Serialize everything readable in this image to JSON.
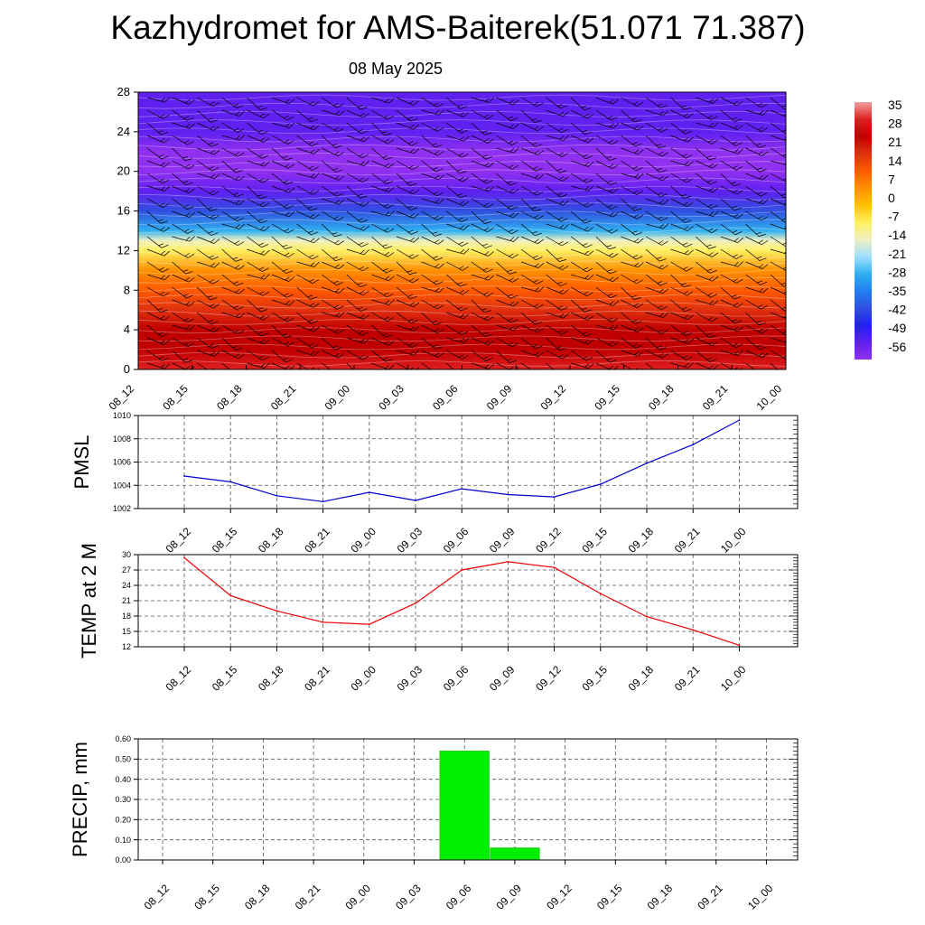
{
  "title": "Kazhydromet for AMS-Baiterek(51.071 71.387)",
  "date": "08 May 2025",
  "time_labels": [
    "08_12",
    "08_15",
    "08_18",
    "08_21",
    "09_00",
    "09_03",
    "09_06",
    "09_09",
    "09_12",
    "09_15",
    "09_18",
    "09_21",
    "10_00"
  ],
  "colorbar": {
    "labels": [
      "35",
      "28",
      "21",
      "14",
      "7",
      "0",
      "-7",
      "-14",
      "-21",
      "-28",
      "-35",
      "-42",
      "-49",
      "-56"
    ],
    "colors": [
      "#f0a0a0",
      "#e02020",
      "#c00000",
      "#e03010",
      "#ff5a00",
      "#ff9000",
      "#ffc000",
      "#fff060",
      "#f0f0c0",
      "#a0e0ff",
      "#30b0f0",
      "#2080f0",
      "#3050e0",
      "#2020f0",
      "#6020f0",
      "#9030f0"
    ]
  },
  "chart_data": [
    {
      "type": "heatmap",
      "title": "",
      "x": [
        "08_12",
        "08_15",
        "08_18",
        "08_21",
        "09_00",
        "09_03",
        "09_06",
        "09_09",
        "09_12",
        "09_15",
        "09_18",
        "09_21",
        "10_00"
      ],
      "y_ticks": [
        0,
        4,
        8,
        12,
        16,
        20,
        24,
        28
      ],
      "ylim": [
        0,
        28
      ],
      "color_range": [
        -56,
        35
      ],
      "profile": [
        {
          "y": 0,
          "value": 28
        },
        {
          "y": 2,
          "value": 25
        },
        {
          "y": 4,
          "value": 21
        },
        {
          "y": 6,
          "value": 16
        },
        {
          "y": 8,
          "value": 10
        },
        {
          "y": 10,
          "value": 3
        },
        {
          "y": 12,
          "value": -8
        },
        {
          "y": 13,
          "value": -16
        },
        {
          "y": 14,
          "value": -24
        },
        {
          "y": 16,
          "value": -36
        },
        {
          "y": 18,
          "value": -50
        },
        {
          "y": 20,
          "value": -56
        },
        {
          "y": 22,
          "value": -55
        },
        {
          "y": 24,
          "value": -52
        },
        {
          "y": 26,
          "value": -50
        },
        {
          "y": 28,
          "value": -48
        }
      ],
      "overlay": "wind barbs"
    },
    {
      "type": "line",
      "ylabel": "PMSL",
      "x": [
        "08_12",
        "08_15",
        "08_18",
        "08_21",
        "09_00",
        "09_03",
        "09_06",
        "09_09",
        "09_12",
        "09_15",
        "09_18",
        "09_21",
        "10_00"
      ],
      "y_ticks": [
        "1002",
        "1004",
        "1006",
        "1008",
        "1010"
      ],
      "ylim": [
        1002,
        1010
      ],
      "values": [
        1004.8,
        1004.3,
        1003.1,
        1002.6,
        1003.4,
        1002.7,
        1003.7,
        1003.2,
        1003.0,
        1004.1,
        1005.9,
        1007.5,
        1009.6
      ],
      "color": "#0000cc",
      "grid": true
    },
    {
      "type": "line",
      "ylabel": "TEMP at 2 M",
      "x": [
        "08_12",
        "08_15",
        "08_18",
        "08_21",
        "09_00",
        "09_03",
        "09_06",
        "09_09",
        "09_12",
        "09_15",
        "09_18",
        "09_21",
        "10_00"
      ],
      "y_ticks": [
        "12",
        "15",
        "18",
        "21",
        "24",
        "27",
        "30"
      ],
      "ylim": [
        12,
        30
      ],
      "values": [
        29.4,
        22.0,
        19.0,
        16.8,
        16.4,
        20.5,
        27.0,
        28.6,
        27.5,
        22.4,
        17.9,
        15.3,
        12.3
      ],
      "color": "#ee0000",
      "grid": true
    },
    {
      "type": "bar",
      "ylabel": "PRECIP, mm",
      "x": [
        "08_12",
        "08_15",
        "08_18",
        "08_21",
        "09_00",
        "09_03",
        "09_06",
        "09_09",
        "09_12",
        "09_15",
        "09_18",
        "09_21",
        "10_00"
      ],
      "y_ticks": [
        "0.00",
        "0.10",
        "0.20",
        "0.30",
        "0.40",
        "0.50",
        "0.60"
      ],
      "ylim": [
        0,
        0.6
      ],
      "values": [
        0,
        0,
        0,
        0,
        0,
        0,
        0.54,
        0.06,
        0,
        0,
        0,
        0,
        0
      ],
      "color": "#00ee00",
      "grid": true
    }
  ]
}
